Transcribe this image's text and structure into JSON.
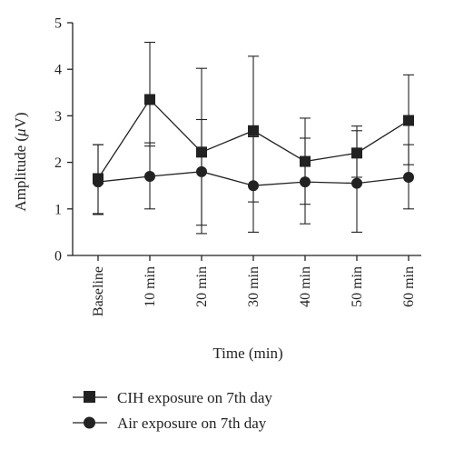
{
  "chart_data": {
    "type": "line",
    "title": "",
    "xlabel": "Time (min)",
    "ylabel_main": "Amplitude (",
    "ylabel_mu": "μ",
    "ylabel_unit": "V)",
    "categories": [
      "Baseline",
      "10 min",
      "20 min",
      "30 min",
      "40 min",
      "50 min",
      "60 min"
    ],
    "ylim": [
      0,
      5
    ],
    "yticks": [
      0,
      1,
      2,
      3,
      4,
      5
    ],
    "grid": false,
    "legend_position": "bottom",
    "series": [
      {
        "name": "CIH exposure on 7th day",
        "marker": "square",
        "values": [
          1.65,
          3.35,
          2.22,
          2.68,
          2.02,
          2.2,
          2.9
        ],
        "err_low": [
          0.9,
          2.35,
          0.65,
          1.15,
          1.1,
          1.68,
          1.95
        ],
        "err_high": [
          2.38,
          4.58,
          4.02,
          4.28,
          2.95,
          2.78,
          3.88
        ]
      },
      {
        "name": "Air exposure on 7th day",
        "marker": "circle",
        "values": [
          1.58,
          1.7,
          1.8,
          1.5,
          1.58,
          1.55,
          1.68
        ],
        "err_low": [
          0.88,
          1.0,
          0.47,
          0.5,
          0.68,
          0.5,
          1.0
        ],
        "err_high": [
          2.38,
          2.42,
          2.92,
          2.55,
          2.52,
          2.68,
          2.38
        ]
      }
    ]
  }
}
